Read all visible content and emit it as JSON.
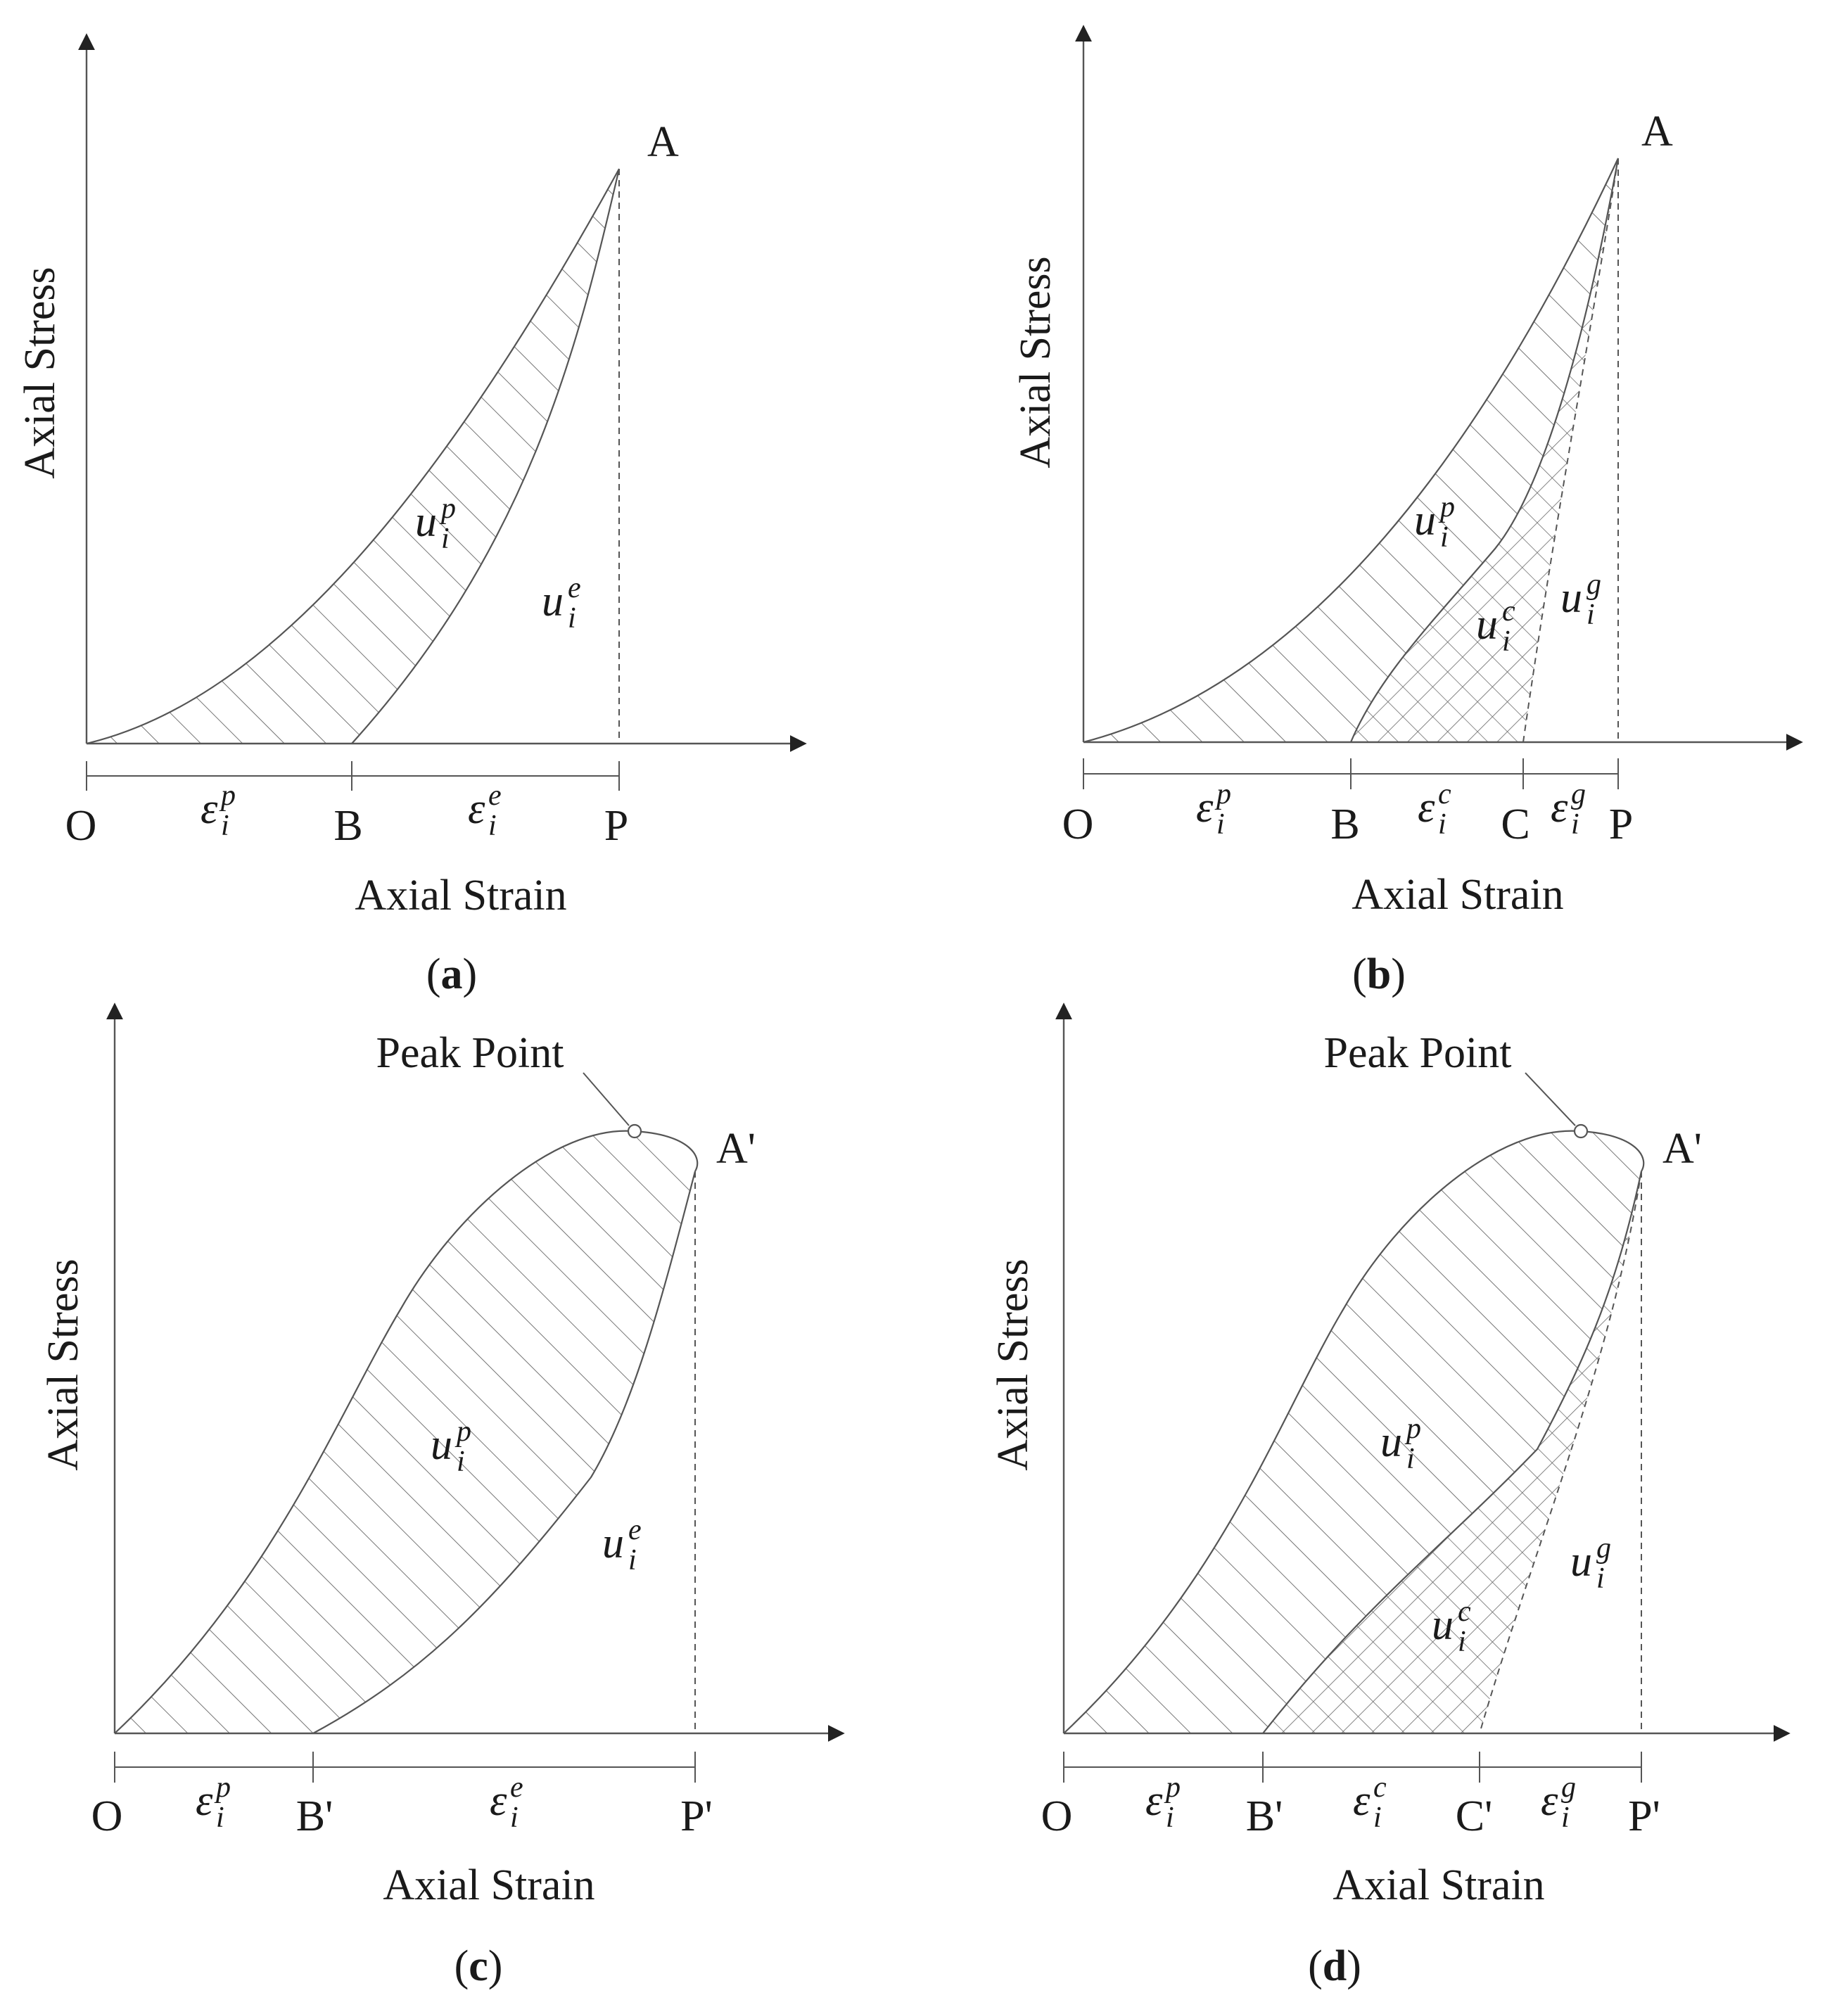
{
  "panels": {
    "a": {
      "caption": "a",
      "y_axis_label": "Axial Stress",
      "x_axis_label": "Axial Strain",
      "peak_label": "A",
      "points": {
        "o": "O",
        "b": "B",
        "p": "P"
      },
      "energy": {
        "up": {
          "base": "u",
          "sub": "i",
          "sup": "p"
        },
        "ue": {
          "base": "u",
          "sub": "i",
          "sup": "e"
        }
      },
      "strains": {
        "ep": {
          "base": "ε",
          "sub": "i",
          "sup": "p"
        },
        "ee": {
          "base": "ε",
          "sub": "i",
          "sup": "e"
        }
      }
    },
    "b": {
      "caption": "b",
      "y_axis_label": "Axial Stress",
      "x_axis_label": "Axial Strain",
      "peak_label": "A",
      "points": {
        "o": "O",
        "b": "B",
        "c": "C",
        "p": "P"
      },
      "energy": {
        "up": {
          "base": "u",
          "sub": "i",
          "sup": "p"
        },
        "uc": {
          "base": "u",
          "sub": "i",
          "sup": "c"
        },
        "ug": {
          "base": "u",
          "sub": "i",
          "sup": "g"
        }
      },
      "strains": {
        "ep": {
          "base": "ε",
          "sub": "i",
          "sup": "p"
        },
        "ec": {
          "base": "ε",
          "sub": "i",
          "sup": "c"
        },
        "eg": {
          "base": "ε",
          "sub": "i",
          "sup": "g"
        }
      }
    },
    "c": {
      "caption": "c",
      "y_axis_label": "Axial Stress",
      "x_axis_label": "Axial Strain",
      "peak_label": "A'",
      "peak_point_label": "Peak Point",
      "points": {
        "o": "O",
        "b": "B'",
        "p": "P'"
      },
      "energy": {
        "up": {
          "base": "u",
          "sub": "i",
          "sup": "p"
        },
        "ue": {
          "base": "u",
          "sub": "i",
          "sup": "e"
        }
      },
      "strains": {
        "ep": {
          "base": "ε",
          "sub": "i",
          "sup": "p"
        },
        "ee": {
          "base": "ε",
          "sub": "i",
          "sup": "e"
        }
      }
    },
    "d": {
      "caption": "d",
      "y_axis_label": "Axial Stress",
      "x_axis_label": "Axial Strain",
      "peak_label": "A'",
      "peak_point_label": "Peak Point",
      "points": {
        "o": "O",
        "b": "B'",
        "c": "C'",
        "p": "P'"
      },
      "energy": {
        "up": {
          "base": "u",
          "sub": "i",
          "sup": "p"
        },
        "uc": {
          "base": "u",
          "sub": "i",
          "sup": "c"
        },
        "ug": {
          "base": "u",
          "sub": "i",
          "sup": "g"
        }
      },
      "strains": {
        "ep": {
          "base": "ε",
          "sub": "i",
          "sup": "p"
        },
        "ec": {
          "base": "ε",
          "sub": "i",
          "sup": "c"
        },
        "eg": {
          "base": "ε",
          "sub": "i",
          "sup": "g"
        }
      }
    }
  }
}
